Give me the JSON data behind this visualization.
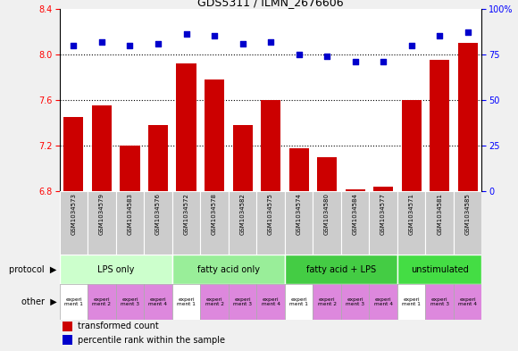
{
  "title": "GDS5311 / ILMN_2676606",
  "samples": [
    "GSM1034573",
    "GSM1034579",
    "GSM1034583",
    "GSM1034576",
    "GSM1034572",
    "GSM1034578",
    "GSM1034582",
    "GSM1034575",
    "GSM1034574",
    "GSM1034580",
    "GSM1034584",
    "GSM1034577",
    "GSM1034571",
    "GSM1034581",
    "GSM1034585"
  ],
  "bar_values": [
    7.45,
    7.55,
    7.2,
    7.38,
    7.92,
    7.78,
    7.38,
    7.6,
    7.18,
    7.1,
    6.82,
    6.84,
    7.6,
    7.95,
    8.1
  ],
  "dot_values": [
    80,
    82,
    80,
    81,
    86,
    85,
    81,
    82,
    75,
    74,
    71,
    71,
    80,
    85,
    87
  ],
  "bar_color": "#cc0000",
  "dot_color": "#0000cc",
  "ylim_left": [
    6.8,
    8.4
  ],
  "ylim_right": [
    0,
    100
  ],
  "yticks_left": [
    6.8,
    7.2,
    7.6,
    8.0,
    8.4
  ],
  "yticks_right": [
    0,
    25,
    50,
    75,
    100
  ],
  "hlines": [
    7.2,
    7.6,
    8.0
  ],
  "protocols": [
    {
      "label": "LPS only",
      "start": 0,
      "end": 4,
      "color": "#ccffcc"
    },
    {
      "label": "fatty acid only",
      "start": 4,
      "end": 8,
      "color": "#99ee99"
    },
    {
      "label": "fatty acid + LPS",
      "start": 8,
      "end": 12,
      "color": "#44cc44"
    },
    {
      "label": "unstimulated",
      "start": 12,
      "end": 15,
      "color": "#44dd44"
    }
  ],
  "other_labels": [
    "experi\nment 1",
    "experi\nment 2",
    "experi\nment 3",
    "experi\nment 4",
    "experi\nment 1",
    "experi\nment 2",
    "experi\nment 3",
    "experi\nment 4",
    "experi\nment 1",
    "experi\nment 2",
    "experi\nment 3",
    "experi\nment 4",
    "experi\nment 1",
    "experi\nment 3",
    "experi\nment 4"
  ],
  "other_colors": [
    "#ffffff",
    "#dd88dd",
    "#dd88dd",
    "#dd88dd",
    "#ffffff",
    "#dd88dd",
    "#dd88dd",
    "#dd88dd",
    "#ffffff",
    "#dd88dd",
    "#dd88dd",
    "#dd88dd",
    "#ffffff",
    "#dd88dd",
    "#dd88dd"
  ],
  "legend_bar_label": "transformed count",
  "legend_dot_label": "percentile rank within the sample",
  "sample_bg": "#cccccc",
  "fig_bg": "#f0f0f0"
}
